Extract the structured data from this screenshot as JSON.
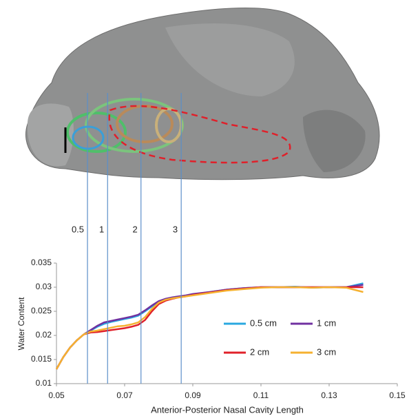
{
  "chart_data": {
    "type": "line",
    "xlabel": "Anterior-Posterior Nasal Cavity Length",
    "ylabel": "Water Content",
    "x": [
      0.05,
      0.052,
      0.054,
      0.056,
      0.058,
      0.06,
      0.062,
      0.064,
      0.066,
      0.068,
      0.07,
      0.072,
      0.074,
      0.076,
      0.078,
      0.08,
      0.082,
      0.084,
      0.086,
      0.088,
      0.09,
      0.095,
      0.1,
      0.105,
      0.11,
      0.115,
      0.12,
      0.125,
      0.13,
      0.135,
      0.14
    ],
    "series": [
      {
        "name": "0.5 cm",
        "color": "#29a8e0",
        "values": [
          0.013,
          0.0155,
          0.0175,
          0.019,
          0.0202,
          0.021,
          0.0218,
          0.0224,
          0.0228,
          0.0231,
          0.0234,
          0.0237,
          0.0241,
          0.025,
          0.026,
          0.027,
          0.0275,
          0.0278,
          0.028,
          0.0282,
          0.0285,
          0.029,
          0.0295,
          0.0298,
          0.03,
          0.03,
          0.0301,
          0.0299,
          0.03,
          0.03,
          0.0308
        ]
      },
      {
        "name": "1 cm",
        "color": "#7030a0",
        "values": [
          0.013,
          0.0155,
          0.0175,
          0.019,
          0.0202,
          0.0211,
          0.022,
          0.0227,
          0.023,
          0.0233,
          0.0236,
          0.0239,
          0.0243,
          0.0252,
          0.0262,
          0.0271,
          0.0276,
          0.0279,
          0.0281,
          0.0283,
          0.0286,
          0.029,
          0.0295,
          0.0298,
          0.03,
          0.03,
          0.03,
          0.03,
          0.03,
          0.03,
          0.0305
        ]
      },
      {
        "name": "2 cm",
        "color": "#e0202a",
        "values": [
          0.013,
          0.0155,
          0.0175,
          0.019,
          0.0202,
          0.0206,
          0.0207,
          0.0209,
          0.0211,
          0.0213,
          0.0215,
          0.0218,
          0.0222,
          0.0232,
          0.025,
          0.0265,
          0.0272,
          0.0276,
          0.0279,
          0.0281,
          0.0284,
          0.0289,
          0.0294,
          0.0297,
          0.03,
          0.03,
          0.03,
          0.03,
          0.03,
          0.03,
          0.03
        ]
      },
      {
        "name": "3 cm",
        "color": "#f5b130",
        "values": [
          0.013,
          0.0155,
          0.0175,
          0.019,
          0.0202,
          0.0208,
          0.021,
          0.0213,
          0.0216,
          0.0219,
          0.022,
          0.0223,
          0.0227,
          0.0238,
          0.0255,
          0.0268,
          0.0274,
          0.0277,
          0.0279,
          0.0281,
          0.0283,
          0.0288,
          0.0293,
          0.0296,
          0.0299,
          0.03,
          0.03,
          0.0299,
          0.03,
          0.0299,
          0.029
        ]
      }
    ],
    "xlim": [
      0.05,
      0.15
    ],
    "xticks": [
      0.05,
      0.07,
      0.09,
      0.11,
      0.13,
      0.15
    ],
    "ylim": [
      0.01,
      0.035
    ],
    "yticks": [
      0.01,
      0.015,
      0.02,
      0.025,
      0.03,
      0.035
    ],
    "markers": [
      {
        "label": "0.5",
        "x": 0.0591
      },
      {
        "label": "1",
        "x": 0.065
      },
      {
        "label": "2",
        "x": 0.0748
      },
      {
        "label": "3",
        "x": 0.0866
      }
    ],
    "marker_color": "#5b8fc9"
  }
}
